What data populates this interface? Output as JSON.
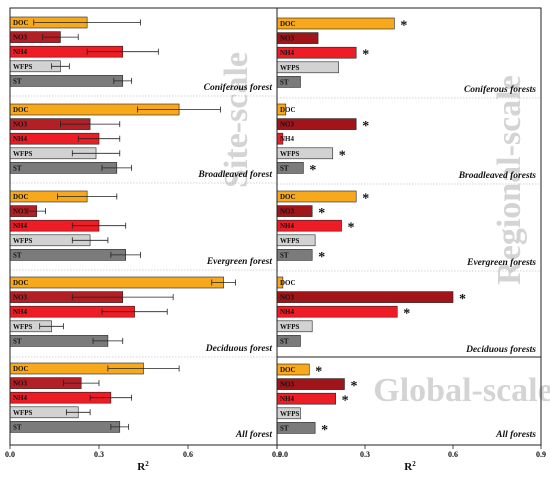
{
  "chart_data": {
    "type": "bar",
    "orientation": "horizontal",
    "xlabel": "R",
    "xlabel_superscript": "2",
    "xlim": [
      0,
      0.9
    ],
    "xticks": [
      0.0,
      0.3,
      0.6,
      0.9
    ],
    "xtick_labels": [
      "0.0",
      "0.3",
      "0.6",
      "0.9"
    ],
    "variables": [
      "DOC",
      "NO3",
      "NH4",
      "WFPS",
      "ST"
    ],
    "colors": {
      "DOC": "#f7a81b",
      "NO3_left": "#b21f24",
      "NO3_right": "#a0141a",
      "NH4": "#ee1c25",
      "WFPS": "#d2d2d2",
      "ST": "#7b7b7b"
    },
    "panels": [
      {
        "scale_label": "Site-scale",
        "groups": [
          {
            "name": "Coniferous forest",
            "values": [
              0.26,
              0.17,
              0.38,
              0.17,
              0.38
            ],
            "errors": [
              0.18,
              0.06,
              0.12,
              0.03,
              0.03
            ],
            "significant": [
              false,
              false,
              false,
              false,
              false
            ]
          },
          {
            "name": "Broadleaved forest",
            "values": [
              0.57,
              0.27,
              0.3,
              0.29,
              0.36
            ],
            "errors": [
              0.14,
              0.1,
              0.07,
              0.08,
              0.05
            ],
            "significant": [
              false,
              false,
              false,
              false,
              false
            ]
          },
          {
            "name": "Evergreen forest",
            "values": [
              0.26,
              0.09,
              0.3,
              0.27,
              0.39
            ],
            "errors": [
              0.1,
              0.03,
              0.09,
              0.06,
              0.05
            ],
            "significant": [
              false,
              false,
              false,
              false,
              false
            ]
          },
          {
            "name": "Deciduous forest",
            "values": [
              0.72,
              0.38,
              0.42,
              0.14,
              0.33
            ],
            "errors": [
              0.04,
              0.17,
              0.11,
              0.04,
              0.05
            ],
            "significant": [
              false,
              false,
              false,
              false,
              false
            ]
          },
          {
            "name": "All forest",
            "values": [
              0.45,
              0.24,
              0.34,
              0.23,
              0.37
            ],
            "errors": [
              0.12,
              0.06,
              0.07,
              0.04,
              0.03
            ],
            "significant": [
              false,
              false,
              false,
              false,
              false
            ]
          }
        ]
      },
      {
        "scale_label": "Regional-scale",
        "groups": [
          {
            "name": "Coniferous forests",
            "values": [
              0.4,
              0.14,
              0.27,
              0.21,
              0.08
            ],
            "errors": null,
            "significant": [
              true,
              false,
              true,
              false,
              false
            ]
          },
          {
            "name": "Broadleaved forests",
            "values": [
              0.03,
              0.27,
              0.02,
              0.19,
              0.09
            ],
            "errors": null,
            "significant": [
              false,
              true,
              false,
              true,
              true
            ]
          },
          {
            "name": "Evergreen forests",
            "values": [
              0.27,
              0.12,
              0.22,
              0.13,
              0.12
            ],
            "errors": null,
            "significant": [
              true,
              true,
              true,
              false,
              true
            ]
          },
          {
            "name": "Deciduous forests",
            "values": [
              0.02,
              0.6,
              0.41,
              0.12,
              0.08
            ],
            "errors": null,
            "significant": [
              false,
              true,
              true,
              false,
              false
            ]
          }
        ]
      },
      {
        "scale_label": "Global-scale",
        "groups": [
          {
            "name": "All forests",
            "values": [
              0.11,
              0.23,
              0.2,
              0.08,
              0.13
            ],
            "errors": null,
            "significant": [
              true,
              true,
              true,
              false,
              true
            ]
          }
        ]
      }
    ]
  }
}
